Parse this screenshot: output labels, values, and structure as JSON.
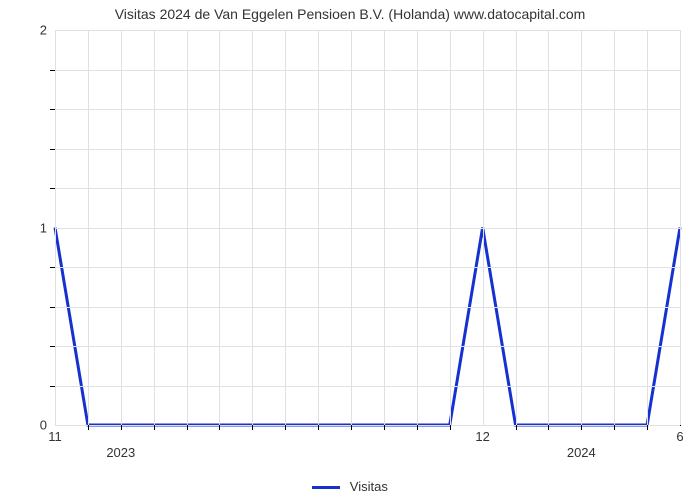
{
  "chart": {
    "type": "line",
    "title": "Visitas 2024 de Van Eggelen Pensioen B.V. (Holanda) www.datocapital.com",
    "title_fontsize": 14,
    "title_color": "#333333",
    "background_color": "#ffffff",
    "plot_border_color": "#000000",
    "grid_color": "#e0e0e0",
    "series": {
      "name": "Visitas",
      "color": "#1531d1",
      "line_width": 3,
      "x": [
        0,
        1,
        2,
        3,
        4,
        5,
        6,
        7,
        8,
        9,
        10,
        11,
        12,
        13,
        14,
        15,
        16,
        17,
        18,
        19
      ],
      "y": [
        1,
        0,
        0,
        0,
        0,
        0,
        0,
        0,
        0,
        0,
        0,
        0,
        0,
        1,
        0,
        0,
        0,
        0,
        0,
        1
      ]
    },
    "x_axis": {
      "major_ticks": [
        {
          "pos": 0,
          "label": "11"
        },
        {
          "pos": 13,
          "label": "12"
        },
        {
          "pos": 19,
          "label": "6"
        }
      ],
      "year_labels": [
        {
          "pos": 2,
          "label": "2023"
        },
        {
          "pos": 16,
          "label": "2024"
        }
      ],
      "minor_tick_positions": [
        1,
        2,
        3,
        4,
        5,
        6,
        7,
        8,
        9,
        10,
        11,
        12,
        14,
        15,
        16,
        17,
        18
      ],
      "range": [
        0,
        19
      ]
    },
    "y_axis": {
      "major_ticks": [
        {
          "pos": 0,
          "label": "0"
        },
        {
          "pos": 1,
          "label": "1"
        },
        {
          "pos": 2,
          "label": "2"
        }
      ],
      "minor_tick_positions": [
        0.2,
        0.4,
        0.6,
        0.8,
        1.2,
        1.4,
        1.6,
        1.8
      ],
      "range": [
        0,
        2
      ]
    },
    "legend": {
      "label": "Visitas",
      "color": "#1531d1"
    }
  }
}
